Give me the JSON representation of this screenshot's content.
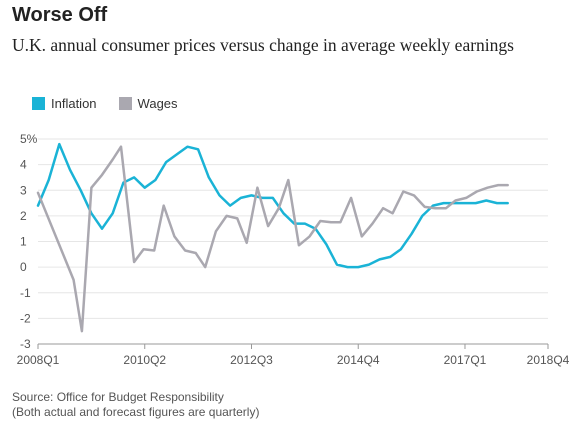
{
  "header": {
    "title": "Worse Off",
    "subtitle": "U.K. annual consumer prices versus change in average weekly earnings"
  },
  "footer": {
    "source": "Source: Office for Budget Responsibility",
    "note": "(Both actual and forecast figures are quarterly)"
  },
  "colors": {
    "inflation": "#1ab3d6",
    "wages": "#aaa8b0",
    "grid": "#e6e6e6",
    "axis_text": "#555555"
  },
  "chart_data": {
    "type": "line",
    "title": "Worse Off",
    "subtitle": "U.K. annual consumer prices versus change in average weekly earnings",
    "xlabel": "",
    "ylabel": "",
    "ylim": [
      -3,
      5
    ],
    "yticks": [
      -3,
      -2,
      -1,
      0,
      1,
      2,
      3,
      4,
      5
    ],
    "ytick_labels": [
      "-3",
      "-2",
      "-1",
      "0",
      "1",
      "2",
      "3",
      "4",
      "5%"
    ],
    "xtick_labels": [
      "2008Q1",
      "2010Q2",
      "2012Q3",
      "2014Q4",
      "2017Q1",
      "2018Q4"
    ],
    "xtick_quarter_index": [
      0,
      9,
      18,
      27,
      36,
      43
    ],
    "grid": true,
    "legend": "top-left",
    "series": [
      {
        "name": "Inflation",
        "color": "#1ab3d6",
        "points": [
          [
            0,
            2.4
          ],
          [
            0.9,
            3.4
          ],
          [
            1.8,
            4.8
          ],
          [
            2.7,
            3.8
          ],
          [
            3.6,
            3.0
          ],
          [
            4.5,
            2.1
          ],
          [
            5.4,
            1.5
          ],
          [
            6.3,
            2.1
          ],
          [
            7.2,
            3.3
          ],
          [
            8.1,
            3.5
          ],
          [
            9.0,
            3.1
          ],
          [
            9.9,
            3.4
          ],
          [
            10.8,
            4.1
          ],
          [
            11.7,
            4.4
          ],
          [
            12.6,
            4.7
          ],
          [
            13.5,
            4.6
          ],
          [
            14.4,
            3.5
          ],
          [
            15.3,
            2.8
          ],
          [
            16.2,
            2.4
          ],
          [
            17.1,
            2.7
          ],
          [
            18.0,
            2.8
          ],
          [
            18.9,
            2.7
          ],
          [
            19.8,
            2.7
          ],
          [
            20.7,
            2.1
          ],
          [
            21.6,
            1.7
          ],
          [
            22.5,
            1.7
          ],
          [
            23.4,
            1.5
          ],
          [
            24.3,
            0.9
          ],
          [
            25.2,
            0.1
          ],
          [
            26.1,
            0.0
          ],
          [
            27.0,
            0.0
          ],
          [
            27.9,
            0.1
          ],
          [
            28.8,
            0.3
          ],
          [
            29.7,
            0.4
          ],
          [
            30.6,
            0.7
          ],
          [
            31.5,
            1.3
          ],
          [
            32.4,
            2.0
          ],
          [
            33.3,
            2.4
          ],
          [
            34.2,
            2.5
          ],
          [
            35.1,
            2.5
          ],
          [
            36.0,
            2.5
          ],
          [
            36.9,
            2.5
          ],
          [
            37.8,
            2.6
          ],
          [
            38.7,
            2.5
          ],
          [
            39.6,
            2.5
          ]
        ]
      },
      {
        "name": "Wages",
        "color": "#aaa8b0",
        "points": [
          [
            0,
            2.9
          ],
          [
            3.0,
            -0.5
          ],
          [
            3.7,
            -2.5
          ],
          [
            4.5,
            3.1
          ],
          [
            5.4,
            3.6
          ],
          [
            6.3,
            4.2
          ],
          [
            7.0,
            4.7
          ],
          [
            8.1,
            0.2
          ],
          [
            8.9,
            0.7
          ],
          [
            9.8,
            0.65
          ],
          [
            10.6,
            2.4
          ],
          [
            11.5,
            1.2
          ],
          [
            12.4,
            0.65
          ],
          [
            13.3,
            0.55
          ],
          [
            14.1,
            0.0
          ],
          [
            15.0,
            1.4
          ],
          [
            15.9,
            2.0
          ],
          [
            16.8,
            1.9
          ],
          [
            17.6,
            0.95
          ],
          [
            18.5,
            3.1
          ],
          [
            19.4,
            1.6
          ],
          [
            20.3,
            2.3
          ],
          [
            21.1,
            3.4
          ],
          [
            22.0,
            0.85
          ],
          [
            22.9,
            1.2
          ],
          [
            23.8,
            1.8
          ],
          [
            24.7,
            1.75
          ],
          [
            25.5,
            1.75
          ],
          [
            26.4,
            2.7
          ],
          [
            27.3,
            1.2
          ],
          [
            28.2,
            1.7
          ],
          [
            29.1,
            2.3
          ],
          [
            29.9,
            2.1
          ],
          [
            30.8,
            2.95
          ],
          [
            31.7,
            2.8
          ],
          [
            32.6,
            2.35
          ],
          [
            33.5,
            2.3
          ],
          [
            34.4,
            2.3
          ],
          [
            35.2,
            2.6
          ],
          [
            36.1,
            2.7
          ],
          [
            37.0,
            2.95
          ],
          [
            37.9,
            3.1
          ],
          [
            38.8,
            3.2
          ],
          [
            39.6,
            3.2
          ]
        ]
      }
    ]
  }
}
